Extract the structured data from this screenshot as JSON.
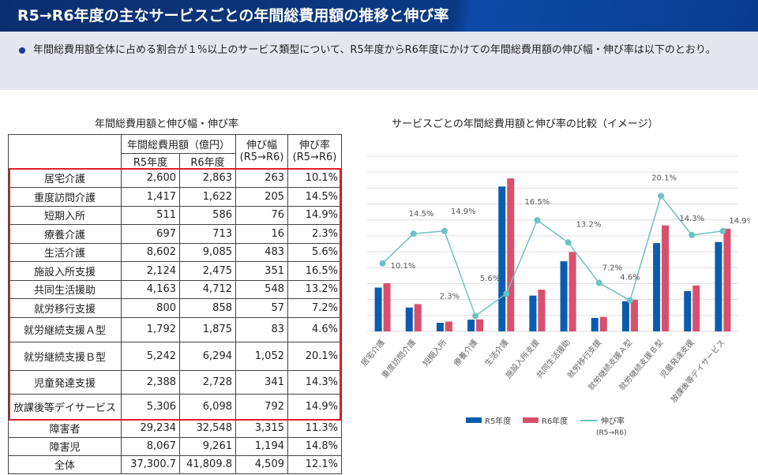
{
  "header": {
    "title": "R5→R6年度の主なサービスごとの年間総費用額の推移と伸び率"
  },
  "intro": {
    "text": "年間総費用額全体に占める割合が１%以上のサービス類型について、R5年度からR6年度にかけての年間総費用額の伸び幅・伸び率は以下のとおり。"
  },
  "table": {
    "title": "年間総費用額と伸び幅・伸び率",
    "headers": {
      "cost": "年間総費用額（億円）",
      "r5": "R5年度",
      "r6": "R6年度",
      "diff": "伸び幅",
      "diff_sub": "(R5→R6)",
      "rate": "伸び率",
      "rate_sub": "(R5→R6)"
    },
    "rows": [
      [
        "居宅介護",
        "2,600",
        "2,863",
        "263",
        "10.1%"
      ],
      [
        "重度訪問介護",
        "1,417",
        "1,622",
        "205",
        "14.5%"
      ],
      [
        "短期入所",
        "511",
        "586",
        "76",
        "14.9%"
      ],
      [
        "療養介護",
        "697",
        "713",
        "16",
        "2.3%"
      ],
      [
        "生活介護",
        "8,602",
        "9,085",
        "483",
        "5.6%"
      ],
      [
        "施設入所支援",
        "2,124",
        "2,475",
        "351",
        "16.5%"
      ],
      [
        "共同生活援助",
        "4,163",
        "4,712",
        "548",
        "13.2%"
      ],
      [
        "就労移行支援",
        "800",
        "858",
        "57",
        "7.2%"
      ],
      [
        "就労継続支援Ａ型",
        "1,792",
        "1,875",
        "83",
        "4.6%"
      ],
      [
        "就労継続支援Ｂ型",
        "5,242",
        "6,294",
        "1,052",
        "20.1%"
      ],
      [
        "児童発達支援",
        "2,388",
        "2,728",
        "341",
        "14.3%"
      ],
      [
        "放課後等デイサービス",
        "5,306",
        "6,098",
        "792",
        "14.9%"
      ],
      [
        "障害者",
        "29,234",
        "32,548",
        "3,315",
        "11.3%"
      ],
      [
        "障害児",
        "8,067",
        "9,261",
        "1,194",
        "14.8%"
      ],
      [
        "全体",
        "37,300.7",
        "41,809.8",
        "4,509",
        "12.1%"
      ]
    ]
  },
  "chart_data": {
    "type": "bar+line",
    "title": "サービスごとの年間総費用額と伸び率の比較（イメージ）",
    "categories": [
      "居宅介護",
      "重度訪問介護",
      "短期入所",
      "療養介護",
      "生活介護",
      "施設入所支援",
      "共同生活援助",
      "就労移行支援",
      "就労継続支援Ａ型",
      "就労継続支援Ｂ型",
      "児童発達支援",
      "放課後等デイサービス"
    ],
    "series": [
      {
        "name": "R5年度",
        "type": "bar",
        "color": "#0a5cb0",
        "values": [
          2600,
          1417,
          511,
          697,
          8602,
          2124,
          4163,
          800,
          1792,
          5242,
          2388,
          5306
        ]
      },
      {
        "name": "R6年度",
        "type": "bar",
        "color": "#d94f6e",
        "values": [
          2863,
          1622,
          586,
          713,
          9085,
          2475,
          4712,
          858,
          1875,
          6294,
          2728,
          6098
        ]
      },
      {
        "name": "伸び率",
        "type": "line",
        "color": "#6cc3bf",
        "values": [
          10.1,
          14.5,
          14.9,
          2.3,
          5.6,
          16.5,
          13.2,
          7.2,
          4.6,
          20.1,
          14.3,
          14.9
        ],
        "data_labels": [
          "10.1%",
          "14.5%",
          "14.9%",
          "2.3%",
          "5.6%",
          "16.5%",
          "13.2%",
          "7.2%",
          "4.6%",
          "20.1%",
          "14.3%",
          "14.9%"
        ]
      }
    ],
    "legend_sub": "(R5→R6)",
    "legend_position": "bottom",
    "ylim_bar": [
      0,
      10400
    ],
    "ylim_line": [
      0,
      26
    ],
    "grid": true
  }
}
